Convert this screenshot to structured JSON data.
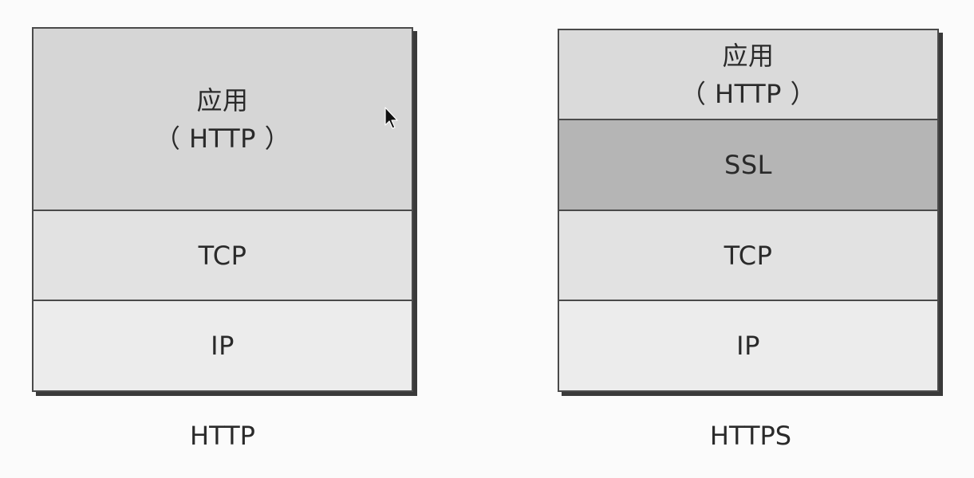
{
  "diagrams": [
    {
      "caption": "HTTP",
      "layers": [
        {
          "line1": "应用",
          "line2": "（ HTTP ）"
        },
        {
          "line1": "TCP"
        },
        {
          "line1": "IP"
        }
      ]
    },
    {
      "caption": "HTTPS",
      "layers": [
        {
          "line1": "应用",
          "line2": "（ HTTP ）"
        },
        {
          "line1": "SSL"
        },
        {
          "line1": "TCP"
        },
        {
          "line1": "IP"
        }
      ]
    }
  ],
  "colors": {
    "border": "#4a4a4a",
    "app_layer": "#d6d6d6",
    "ssl_layer": "#b5b5b5",
    "tcp_layer": "#e2e2e2",
    "ip_layer": "#ececec"
  },
  "icons": {
    "cursor": "mouse-pointer-icon"
  }
}
